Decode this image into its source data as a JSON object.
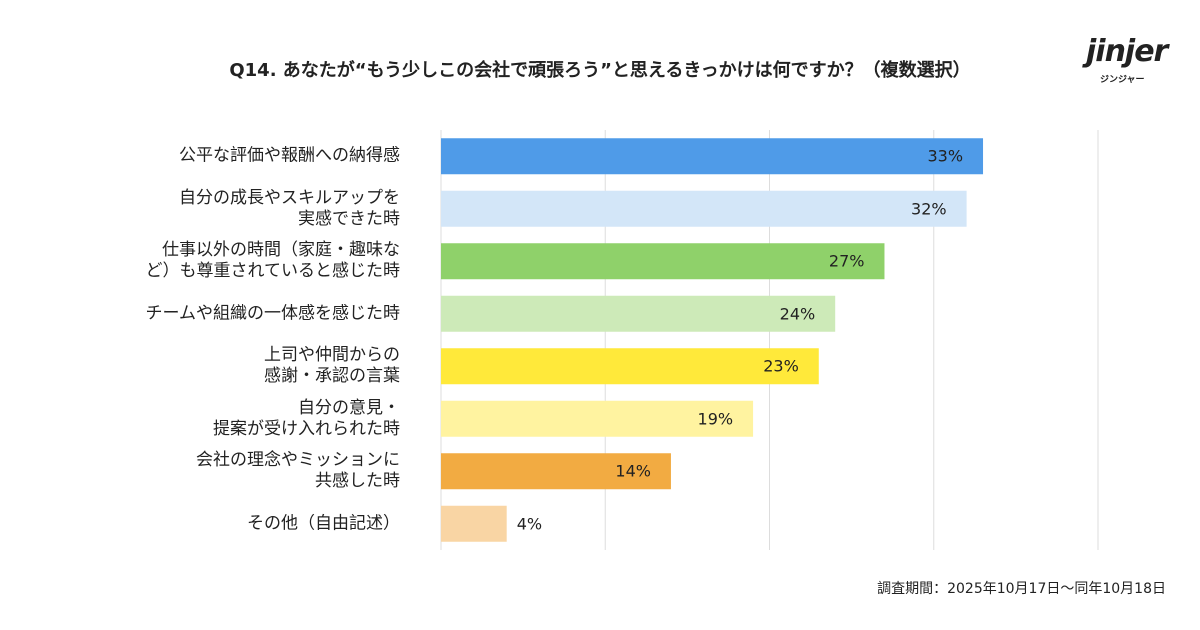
{
  "chart_data": {
    "type": "bar",
    "orientation": "horizontal",
    "title": "Q14. あなたが“もう少しこの会社で頑張ろう”と思えるきっかけは何ですか？（複数選択）",
    "categories": [
      "公平な評価や報酬への納得感",
      "自分の成長やスキルアップを\n実感できた時",
      "仕事以外の時間（家庭・趣味な\nど）も尊重されていると感じた時",
      "チームや組織の一体感を感じた時",
      "上司や仲間からの\n感謝・承認の言葉",
      "自分の意見・\n提案が受け入れられた時",
      "会社の理念やミッションに\n共感した時",
      "その他（自由記述）"
    ],
    "values": [
      33,
      32,
      27,
      24,
      23,
      19,
      14,
      4
    ],
    "value_labels": [
      "33%",
      "32%",
      "27%",
      "24%",
      "23%",
      "19%",
      "14%",
      "4%"
    ],
    "colors": [
      "#4f9be8",
      "#d3e6f8",
      "#8fd16a",
      "#cdeab8",
      "#ffe93a",
      "#fff3a0",
      "#f2ab42",
      "#f9d5a4"
    ],
    "xlim": [
      0,
      40
    ],
    "xticks": [
      0,
      10,
      20,
      30,
      40
    ],
    "grid": true,
    "footnote": "調査期間：2025年10月17日〜同年10月18日",
    "logo": {
      "name": "jinjer",
      "sub": "ジンジャー"
    }
  }
}
